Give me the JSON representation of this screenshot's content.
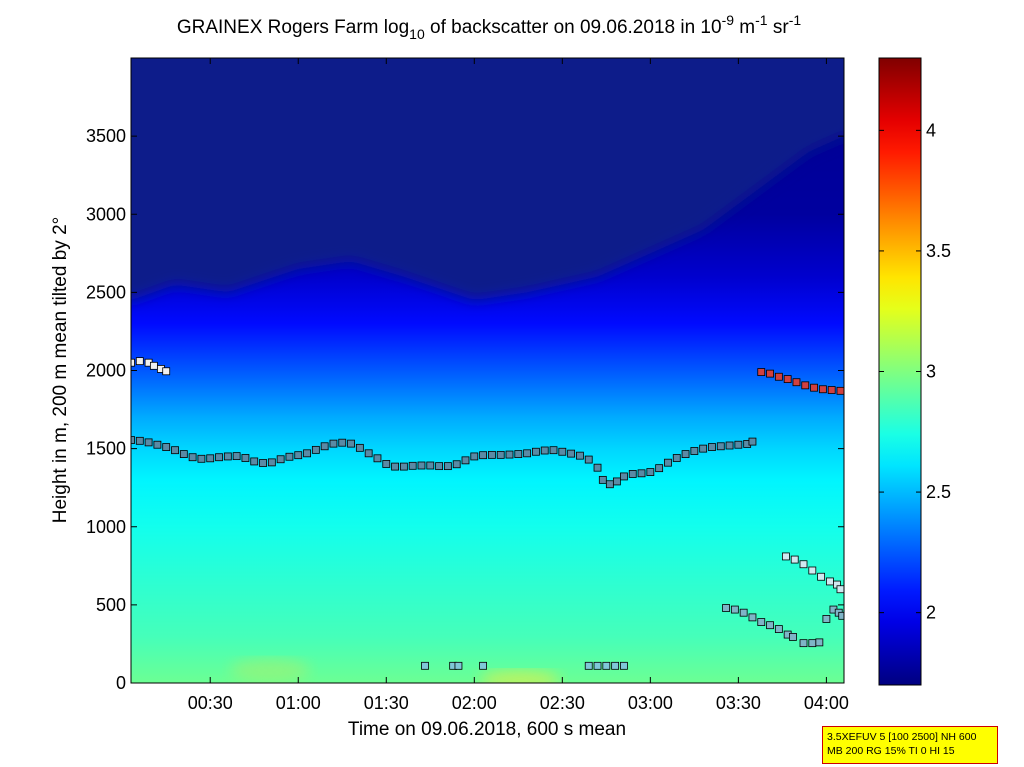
{
  "chart_data": {
    "type": "heatmap",
    "title": {
      "prefix": "GRAINEX Rogers Farm log",
      "sub": "10",
      "mid": " of backscatter on 09.06.2018 in 10",
      "exp1": "-9",
      "unit1": " m",
      "exp2": "-1",
      "unit2": " sr",
      "exp3": "-1"
    },
    "xlabel": "Time on 09.06.2018, 600 s mean",
    "ylabel": "Height in m, 200 m mean tilted by 2°",
    "xlim_hours": [
      0.05,
      4.1
    ],
    "ylim": [
      0,
      4000
    ],
    "x_ticks": [
      {
        "t": 0.5,
        "label": "00:30"
      },
      {
        "t": 1.0,
        "label": "01:00"
      },
      {
        "t": 1.5,
        "label": "01:30"
      },
      {
        "t": 2.0,
        "label": "02:00"
      },
      {
        "t": 2.5,
        "label": "02:30"
      },
      {
        "t": 3.0,
        "label": "03:00"
      },
      {
        "t": 3.5,
        "label": "03:30"
      },
      {
        "t": 4.0,
        "label": "04:00"
      }
    ],
    "y_ticks": [
      {
        "v": 0,
        "label": "0"
      },
      {
        "v": 500,
        "label": "500"
      },
      {
        "v": 1000,
        "label": "1000"
      },
      {
        "v": 1500,
        "label": "1500"
      },
      {
        "v": 2000,
        "label": "2000"
      },
      {
        "v": 2500,
        "label": "2500"
      },
      {
        "v": 3000,
        "label": "3000"
      },
      {
        "v": 3500,
        "label": "3500"
      }
    ],
    "colorbar": {
      "range": [
        1.7,
        4.3
      ],
      "colormap": "jet",
      "ticks": [
        {
          "v": 2,
          "label": "2"
        },
        {
          "v": 2.5,
          "label": "2.5"
        },
        {
          "v": 3,
          "label": "3"
        },
        {
          "v": 3.5,
          "label": "3.5"
        },
        {
          "v": 4,
          "label": "4"
        }
      ]
    },
    "field_profile": [
      {
        "h": 0,
        "v": 2.95
      },
      {
        "h": 300,
        "v": 2.85
      },
      {
        "h": 700,
        "v": 2.78
      },
      {
        "h": 1000,
        "v": 2.72
      },
      {
        "h": 1300,
        "v": 2.65
      },
      {
        "h": 1500,
        "v": 2.57
      },
      {
        "h": 1700,
        "v": 2.46
      },
      {
        "h": 2000,
        "v": 2.25
      },
      {
        "h": 2300,
        "v": 2.05
      },
      {
        "h": 2600,
        "v": 1.9
      },
      {
        "h": 3000,
        "v": 1.78
      },
      {
        "h": 4000,
        "v": 1.74
      }
    ],
    "top_boundary": [
      {
        "t": 0.05,
        "h": 2450
      },
      {
        "t": 0.3,
        "h": 2550
      },
      {
        "t": 0.6,
        "h": 2500
      },
      {
        "t": 1.0,
        "h": 2650
      },
      {
        "t": 1.3,
        "h": 2700
      },
      {
        "t": 1.6,
        "h": 2600
      },
      {
        "t": 2.0,
        "h": 2450
      },
      {
        "t": 2.3,
        "h": 2500
      },
      {
        "t": 2.7,
        "h": 2600
      },
      {
        "t": 3.0,
        "h": 2750
      },
      {
        "t": 3.3,
        "h": 2900
      },
      {
        "t": 3.6,
        "h": 3150
      },
      {
        "t": 3.9,
        "h": 3400
      },
      {
        "t": 4.1,
        "h": 3500
      }
    ],
    "series": [
      {
        "marker_color": "#5a8aa5",
        "points": [
          {
            "t": 0.05,
            "h": 1555
          },
          {
            "t": 0.1,
            "h": 1550
          },
          {
            "t": 0.15,
            "h": 1540
          },
          {
            "t": 0.2,
            "h": 1525
          },
          {
            "t": 0.25,
            "h": 1510
          },
          {
            "t": 0.3,
            "h": 1490
          },
          {
            "t": 0.35,
            "h": 1465
          },
          {
            "t": 0.4,
            "h": 1445
          },
          {
            "t": 0.45,
            "h": 1435
          },
          {
            "t": 0.5,
            "h": 1438
          },
          {
            "t": 0.55,
            "h": 1445
          },
          {
            "t": 0.6,
            "h": 1450
          },
          {
            "t": 0.65,
            "h": 1452
          },
          {
            "t": 0.7,
            "h": 1440
          },
          {
            "t": 0.75,
            "h": 1418
          },
          {
            "t": 0.8,
            "h": 1408
          },
          {
            "t": 0.85,
            "h": 1412
          },
          {
            "t": 0.9,
            "h": 1432
          },
          {
            "t": 0.95,
            "h": 1448
          },
          {
            "t": 1.0,
            "h": 1458
          },
          {
            "t": 1.05,
            "h": 1470
          },
          {
            "t": 1.1,
            "h": 1492
          },
          {
            "t": 1.15,
            "h": 1515
          },
          {
            "t": 1.2,
            "h": 1532
          },
          {
            "t": 1.25,
            "h": 1538
          },
          {
            "t": 1.3,
            "h": 1532
          },
          {
            "t": 1.35,
            "h": 1505
          },
          {
            "t": 1.4,
            "h": 1470
          },
          {
            "t": 1.45,
            "h": 1438
          },
          {
            "t": 1.5,
            "h": 1402
          },
          {
            "t": 1.55,
            "h": 1385
          },
          {
            "t": 1.6,
            "h": 1385
          },
          {
            "t": 1.65,
            "h": 1390
          },
          {
            "t": 1.7,
            "h": 1392
          },
          {
            "t": 1.75,
            "h": 1392
          },
          {
            "t": 1.8,
            "h": 1388
          },
          {
            "t": 1.85,
            "h": 1388
          },
          {
            "t": 1.9,
            "h": 1400
          },
          {
            "t": 1.95,
            "h": 1425
          },
          {
            "t": 2.0,
            "h": 1450
          },
          {
            "t": 2.05,
            "h": 1458
          },
          {
            "t": 2.1,
            "h": 1460
          },
          {
            "t": 2.15,
            "h": 1460
          },
          {
            "t": 2.2,
            "h": 1462
          },
          {
            "t": 2.25,
            "h": 1465
          },
          {
            "t": 2.3,
            "h": 1470
          },
          {
            "t": 2.35,
            "h": 1480
          },
          {
            "t": 2.4,
            "h": 1488
          },
          {
            "t": 2.45,
            "h": 1490
          },
          {
            "t": 2.5,
            "h": 1480
          },
          {
            "t": 2.55,
            "h": 1468
          },
          {
            "t": 2.6,
            "h": 1455
          },
          {
            "t": 2.65,
            "h": 1430
          },
          {
            "t": 2.7,
            "h": 1378
          },
          {
            "t": 2.73,
            "h": 1300
          },
          {
            "t": 2.77,
            "h": 1272
          },
          {
            "t": 2.81,
            "h": 1290
          },
          {
            "t": 2.85,
            "h": 1322
          },
          {
            "t": 2.9,
            "h": 1338
          },
          {
            "t": 2.95,
            "h": 1342
          },
          {
            "t": 3.0,
            "h": 1350
          },
          {
            "t": 3.05,
            "h": 1375
          },
          {
            "t": 3.1,
            "h": 1410
          },
          {
            "t": 3.15,
            "h": 1440
          },
          {
            "t": 3.2,
            "h": 1465
          },
          {
            "t": 3.25,
            "h": 1485
          },
          {
            "t": 3.3,
            "h": 1500
          },
          {
            "t": 3.35,
            "h": 1510
          },
          {
            "t": 3.4,
            "h": 1515
          },
          {
            "t": 3.45,
            "h": 1520
          },
          {
            "t": 3.5,
            "h": 1525
          },
          {
            "t": 3.55,
            "h": 1530
          },
          {
            "t": 3.58,
            "h": 1545
          }
        ]
      },
      {
        "marker_color": "#f0f0f0",
        "points": [
          {
            "t": 0.05,
            "h": 2050
          },
          {
            "t": 0.1,
            "h": 2060
          },
          {
            "t": 0.15,
            "h": 2050
          },
          {
            "t": 0.18,
            "h": 2030
          },
          {
            "t": 0.22,
            "h": 2010
          },
          {
            "t": 0.25,
            "h": 1995
          }
        ]
      },
      {
        "marker_color": "#d04040",
        "points": [
          {
            "t": 3.63,
            "h": 1990
          },
          {
            "t": 3.68,
            "h": 1980
          },
          {
            "t": 3.73,
            "h": 1960
          },
          {
            "t": 3.78,
            "h": 1945
          },
          {
            "t": 3.83,
            "h": 1925
          },
          {
            "t": 3.88,
            "h": 1905
          },
          {
            "t": 3.93,
            "h": 1890
          },
          {
            "t": 3.98,
            "h": 1880
          },
          {
            "t": 4.03,
            "h": 1875
          },
          {
            "t": 4.08,
            "h": 1870
          }
        ]
      },
      {
        "marker_color": "#d0e8f0",
        "points": [
          {
            "t": 3.77,
            "h": 810
          },
          {
            "t": 3.82,
            "h": 790
          },
          {
            "t": 3.87,
            "h": 760
          },
          {
            "t": 3.92,
            "h": 720
          },
          {
            "t": 3.97,
            "h": 680
          },
          {
            "t": 4.02,
            "h": 650
          },
          {
            "t": 4.06,
            "h": 630
          },
          {
            "t": 4.08,
            "h": 600
          }
        ]
      },
      {
        "marker_color": "#7fb5c7",
        "points": [
          {
            "t": 3.43,
            "h": 480
          },
          {
            "t": 3.48,
            "h": 470
          },
          {
            "t": 3.53,
            "h": 450
          },
          {
            "t": 3.58,
            "h": 420
          },
          {
            "t": 3.63,
            "h": 390
          },
          {
            "t": 3.68,
            "h": 370
          },
          {
            "t": 3.73,
            "h": 345
          },
          {
            "t": 3.78,
            "h": 310
          },
          {
            "t": 3.81,
            "h": 295
          },
          {
            "t": 3.87,
            "h": 255
          },
          {
            "t": 3.92,
            "h": 255
          },
          {
            "t": 3.96,
            "h": 260
          },
          {
            "t": 4.0,
            "h": 410
          },
          {
            "t": 4.04,
            "h": 470
          },
          {
            "t": 4.07,
            "h": 450
          },
          {
            "t": 4.09,
            "h": 430
          }
        ]
      },
      {
        "marker_color": "#7fc8d8",
        "points": [
          {
            "t": 1.72,
            "h": 110
          },
          {
            "t": 1.88,
            "h": 110
          },
          {
            "t": 1.91,
            "h": 110
          },
          {
            "t": 2.05,
            "h": 110
          },
          {
            "t": 2.65,
            "h": 110
          },
          {
            "t": 2.7,
            "h": 110
          },
          {
            "t": 2.75,
            "h": 110
          },
          {
            "t": 2.8,
            "h": 110
          },
          {
            "t": 2.85,
            "h": 110
          }
        ]
      }
    ]
  },
  "info_box": {
    "line1": "3.5XEFUV 5 [100 2500] NH 600",
    "line2": "MB 200 RG 15% TI 0 HI 15"
  }
}
